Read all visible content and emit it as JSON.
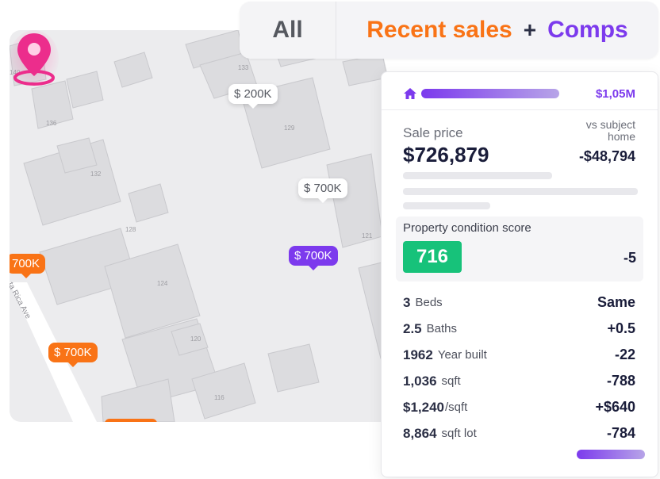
{
  "filters": {
    "all_label": "All",
    "recent_sales_label": "Recent sales",
    "plus": "+",
    "comps_label": "Comps"
  },
  "map": {
    "street_name": "ta Rica Ave",
    "lot_numbers": [
      "133",
      "140",
      "136",
      "129",
      "132",
      "128",
      "124",
      "121",
      "120",
      "116"
    ],
    "price_tags": [
      {
        "label": "$ 200K",
        "style": "white"
      },
      {
        "label": "$ 700K",
        "style": "white"
      },
      {
        "label": "$ 700K",
        "style": "purple"
      },
      {
        "label": "700K",
        "style": "orange"
      },
      {
        "label": "$ 700K",
        "style": "orange"
      }
    ],
    "colors": {
      "orange": "#f97316",
      "purple": "#7c3aed",
      "pin": "#ec2d8c"
    }
  },
  "card": {
    "top_price": "$1,05M",
    "sale_price_label": "Sale price",
    "sale_price": "$726,879",
    "vs_label": "vs subject home",
    "vs_value": "-$48,794",
    "condition_label": "Property condition score",
    "condition_score": "716",
    "condition_diff": "-5",
    "rows": [
      {
        "value": "3",
        "unit": "Beds",
        "diff": "Same"
      },
      {
        "value": "2.5",
        "unit": "Baths",
        "diff": "+0.5"
      },
      {
        "value": "1962",
        "unit": "Year built",
        "diff": "-22"
      },
      {
        "value": "1,036",
        "unit": "sqft",
        "diff": "-788"
      },
      {
        "value": "$1,240",
        "unit": "/sqft",
        "diff": "+$640"
      },
      {
        "value": "8,864",
        "unit": "sqft lot",
        "diff": "-784"
      }
    ],
    "colors": {
      "accent": "#7c3aed",
      "score_bg": "#17c27a"
    }
  }
}
